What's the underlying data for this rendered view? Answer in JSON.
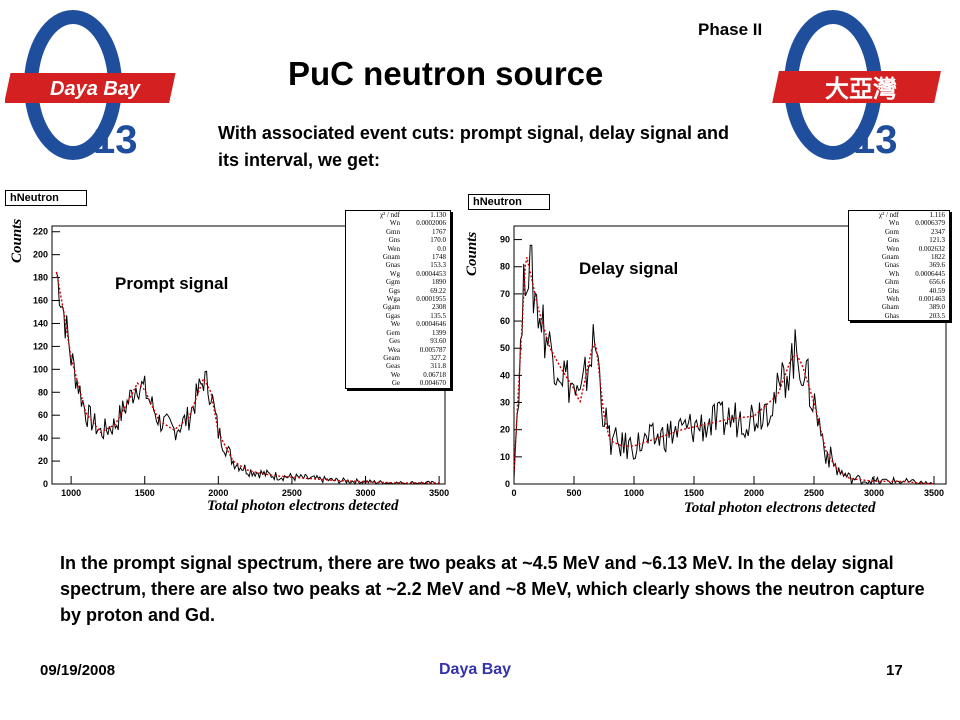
{
  "header": {
    "phase": "Phase II",
    "title": "PuC neutron source",
    "subtitle": "With associated event cuts: prompt signal, delay signal and its interval, we get:"
  },
  "logos": {
    "left": {
      "brand": "Daya Bay",
      "subscript": "13",
      "icon": "theta13-logo-icon"
    },
    "right": {
      "brand": "大亞灣",
      "subscript": "13",
      "icon": "theta13-logo-icon"
    }
  },
  "chart_data": [
    {
      "type": "line",
      "histogram_title": "hNeutron",
      "label": "Prompt signal",
      "xlabel": "Total photon electrons detected",
      "ylabel": "Counts",
      "xlim": [
        870,
        3540
      ],
      "ylim": [
        0,
        225
      ],
      "xticks": [
        1000,
        1500,
        2000,
        2500,
        3000,
        3500
      ],
      "yticks": [
        0,
        20,
        40,
        60,
        80,
        100,
        120,
        140,
        160,
        180,
        200,
        220
      ],
      "series": [
        {
          "values_note": "",
          "x": [
            900,
            950,
            1000,
            1100,
            1200,
            1300,
            1400,
            1450,
            1500,
            1550,
            1600,
            1700,
            1800,
            1850,
            1900,
            1950,
            2000,
            2100,
            2200,
            2300,
            2400,
            2500,
            2600,
            2800,
            3000,
            3200,
            3500
          ],
          "y": [
            185,
            150,
            110,
            62,
            45,
            52,
            75,
            88,
            82,
            68,
            55,
            47,
            58,
            75,
            92,
            80,
            45,
            20,
            12,
            9,
            7,
            6,
            5,
            3,
            2,
            1,
            1
          ]
        }
      ],
      "fit_stats": [
        [
          "χ² / ndf",
          "1.130"
        ],
        [
          "Wn",
          "0.0002006"
        ],
        [
          "Gmn",
          "1767"
        ],
        [
          "Gns",
          "170.0"
        ],
        [
          "Wen",
          "0.0"
        ],
        [
          "Gnam",
          "1748"
        ],
        [
          "Gnas",
          "153.3"
        ],
        [
          "Wg",
          "0.0004453"
        ],
        [
          "Ggm",
          "1890"
        ],
        [
          "Ggs",
          "69.22"
        ],
        [
          "Wga",
          "0.0001955"
        ],
        [
          "Ggam",
          "2308"
        ],
        [
          "Ggas",
          "135.5"
        ],
        [
          "We",
          "0.0004646"
        ],
        [
          "Gem",
          "1399"
        ],
        [
          "Ges",
          "93.60"
        ],
        [
          "Wea",
          "0.005787"
        ],
        [
          "Geam",
          "327.2"
        ],
        [
          "Geas",
          "311.8"
        ],
        [
          "We",
          "0.06718"
        ],
        [
          "Ge",
          "0.004670"
        ]
      ]
    },
    {
      "type": "line",
      "histogram_title": "hNeutron",
      "label": "Delay signal",
      "xlabel": "Total photon electrons detected",
      "ylabel": "Counts",
      "xlim": [
        0,
        3600
      ],
      "ylim": [
        0,
        95
      ],
      "xticks": [
        0,
        500,
        1000,
        1500,
        2000,
        2500,
        3000,
        3500
      ],
      "yticks": [
        0,
        10,
        20,
        30,
        40,
        50,
        60,
        70,
        80,
        90
      ],
      "series": [
        {
          "x": [
            0,
            100,
            200,
            300,
            400,
            500,
            550,
            600,
            650,
            680,
            700,
            750,
            800,
            900,
            1000,
            1200,
            1400,
            1600,
            1800,
            2000,
            2200,
            2300,
            2350,
            2400,
            2500,
            2600,
            2700,
            2800,
            3000,
            3200,
            3500
          ],
          "y": [
            5,
            85,
            65,
            50,
            42,
            35,
            30,
            40,
            50,
            52,
            45,
            25,
            16,
            14,
            14,
            17,
            20,
            22,
            24,
            25,
            33,
            45,
            48,
            44,
            30,
            12,
            5,
            2,
            1,
            1,
            0
          ]
        }
      ],
      "fit_stats": [
        [
          "χ² / ndf",
          "1.116"
        ],
        [
          "Wn",
          "0.0006379"
        ],
        [
          "Gnm",
          "2347"
        ],
        [
          "Gns",
          "121.3"
        ],
        [
          "Wen",
          "0.002632"
        ],
        [
          "Gnam",
          "1822"
        ],
        [
          "Gnas",
          "369.6"
        ],
        [
          "Wh",
          "0.0006445"
        ],
        [
          "Ghm",
          "656.6"
        ],
        [
          "Ghs",
          "40.59"
        ],
        [
          "Weh",
          "0.001463"
        ],
        [
          "Gham",
          "389.0"
        ],
        [
          "Ghas",
          "203.5"
        ]
      ]
    }
  ],
  "caption": "In the prompt signal spectrum, there are two peaks at ~4.5 MeV and ~6.13 MeV. In the delay signal spectrum, there are also two peaks at ~2.2 MeV and ~8 MeV, which clearly shows the neutron capture by proton and Gd.",
  "footer": {
    "date": "09/19/2008",
    "center": "Daya Bay",
    "page": "17"
  },
  "colors": {
    "data": "#000000",
    "fit": "#cc0000",
    "footer_center": "#3333aa",
    "logo_red": "#d42020",
    "logo_blue": "#1f4e9c"
  }
}
